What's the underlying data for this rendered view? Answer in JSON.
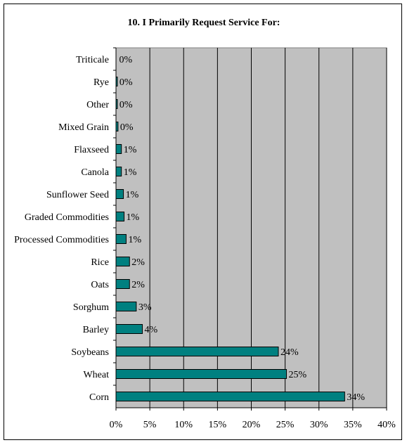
{
  "chart_data": {
    "type": "bar",
    "orientation": "horizontal",
    "title": "10. I Primarily Request Service For:",
    "categories": [
      "Triticale",
      "Rye",
      "Other",
      "Mixed Grain",
      "Flaxseed",
      "Canola",
      "Sunflower Seed",
      "Graded Commodities",
      "Processed Commodities",
      "Rice",
      "Oats",
      "Sorghum",
      "Barley",
      "Soybeans",
      "Wheat",
      "Corn"
    ],
    "values": [
      0,
      0.2,
      0.2,
      0.3,
      0.8,
      0.8,
      1.1,
      1.2,
      1.5,
      2.0,
      2.0,
      3.0,
      3.9,
      24.0,
      25.2,
      33.8
    ],
    "value_labels": [
      "0%",
      "0%",
      "0%",
      "0%",
      "1%",
      "1%",
      "1%",
      "1%",
      "1%",
      "2%",
      "2%",
      "3%",
      "4%",
      "24%",
      "25%",
      "34%"
    ],
    "xlim": [
      0,
      40
    ],
    "xticks": [
      0,
      5,
      10,
      15,
      20,
      25,
      30,
      35,
      40
    ],
    "xtick_labels": [
      "0%",
      "5%",
      "10%",
      "15%",
      "20%",
      "25%",
      "30%",
      "35%",
      "40%"
    ],
    "xlabel": "",
    "ylabel": "",
    "grid": "vertical",
    "legend": "none",
    "colors": {
      "bar": "#008080",
      "plot_background": "#c0c0c0",
      "gridline": "#000000"
    }
  }
}
